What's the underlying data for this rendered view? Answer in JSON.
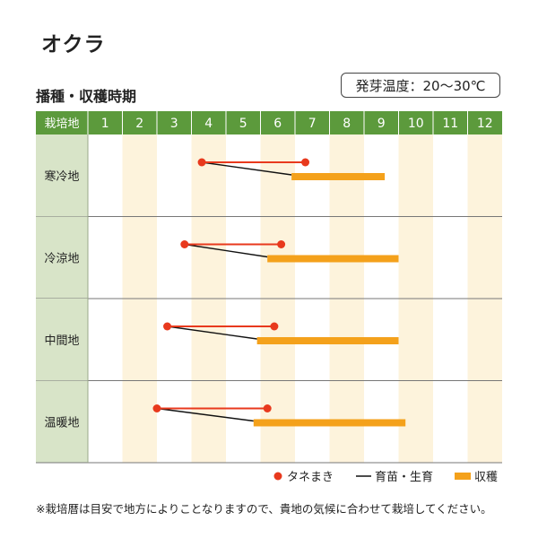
{
  "title": "オクラ",
  "subtitle": "播種・収穫時期",
  "temperature": "発芽温度：20〜30℃",
  "note": "※栽培暦は目安で地方によりことなりますので、貴地の気候に合わせて栽培してください。",
  "colors": {
    "header": "#5c9a3c",
    "label_bg": "#d8e4c8",
    "alt_col": "#fdf3dc",
    "sowing": "#e8391d",
    "harvest": "#f4a11b",
    "seedling": "#111111"
  },
  "chart_data": {
    "type": "table",
    "header_label": "栽培地",
    "months": [
      "1",
      "2",
      "3",
      "4",
      "5",
      "6",
      "7",
      "8",
      "9",
      "10",
      "11",
      "12"
    ],
    "regions": [
      {
        "name": "寒冷地",
        "sowing": [
          4.3,
          7.3
        ],
        "seedling": [
          4.3,
          6.9
        ],
        "harvest": [
          6.9,
          9.6
        ]
      },
      {
        "name": "冷涼地",
        "sowing": [
          3.8,
          6.6
        ],
        "seedling": [
          3.8,
          6.2
        ],
        "harvest": [
          6.2,
          10.0
        ]
      },
      {
        "name": "中間地",
        "sowing": [
          3.3,
          6.4
        ],
        "seedling": [
          3.3,
          5.9
        ],
        "harvest": [
          5.9,
          10.0
        ]
      },
      {
        "name": "温暖地",
        "sowing": [
          3.0,
          6.2
        ],
        "seedling": [
          3.0,
          5.8
        ],
        "harvest": [
          5.8,
          10.2
        ]
      }
    ],
    "legend": [
      {
        "key": "sowing",
        "label": "タネまき"
      },
      {
        "key": "seedling",
        "label": "育苗・生育"
      },
      {
        "key": "harvest",
        "label": "収穫"
      }
    ]
  }
}
